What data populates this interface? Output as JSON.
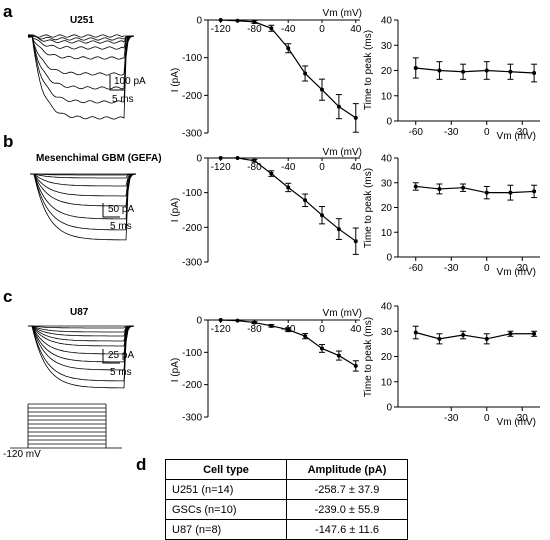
{
  "panel_letters": [
    "a",
    "b",
    "c",
    "d"
  ],
  "traces": [
    {
      "label": "U251",
      "scale_current": "100 pA",
      "scale_time": "5 ms"
    },
    {
      "label": "Mesenchimal GBM (GEFA)",
      "scale_current": "50 pA",
      "scale_time": "5 ms"
    },
    {
      "label": "U87",
      "scale_current": "25 pA",
      "scale_time": "5 ms"
    }
  ],
  "protocol_label": "-120 mV",
  "chart_data": [
    {
      "type": "line",
      "panel": "a",
      "title": "",
      "xlabel": "Vm (mV)",
      "ylabel": "I (pA)",
      "x": [
        -120,
        -100,
        -80,
        -60,
        -40,
        -20,
        0,
        20,
        40
      ],
      "y": [
        0,
        -2,
        -5,
        -22,
        -75,
        -142,
        -185,
        -230,
        -260
      ],
      "err": [
        0,
        0,
        4,
        8,
        12,
        20,
        28,
        32,
        38
      ],
      "xticks": [
        "-120",
        "-80",
        "-40",
        "0",
        "40"
      ],
      "yticks": [
        "0",
        "-100",
        "-200",
        "-300"
      ],
      "ylim": [
        -300,
        0
      ]
    },
    {
      "type": "line",
      "panel": "a",
      "title": "",
      "xlabel": "Vm (mV)",
      "ylabel": "Time to peak (ms)",
      "x": [
        -60,
        -40,
        -20,
        0,
        20,
        40
      ],
      "y": [
        21,
        20,
        19.5,
        20,
        19.5,
        19
      ],
      "err": [
        4,
        3.5,
        3,
        3.5,
        3,
        3.5
      ],
      "xticks": [
        "-60",
        "-30",
        "0",
        "30"
      ],
      "yticks": [
        "0",
        "10",
        "20",
        "30",
        "40"
      ],
      "ylim": [
        0,
        40
      ]
    },
    {
      "type": "line",
      "panel": "b",
      "title": "",
      "xlabel": "Vm (mV)",
      "ylabel": "I (pA)",
      "x": [
        -120,
        -100,
        -80,
        -60,
        -40,
        -20,
        0,
        20,
        40
      ],
      "y": [
        0,
        0,
        -8,
        -45,
        -85,
        -122,
        -165,
        -205,
        -240
      ],
      "err": [
        0,
        0,
        4,
        8,
        12,
        18,
        25,
        30,
        38
      ],
      "xticks": [
        "-120",
        "-80",
        "-40",
        "0",
        "40"
      ],
      "yticks": [
        "0",
        "-100",
        "-200",
        "-300"
      ],
      "ylim": [
        -300,
        0
      ]
    },
    {
      "type": "line",
      "panel": "b",
      "title": "",
      "xlabel": "Vm (mV)",
      "ylabel": "Time to peak (ms)",
      "x": [
        -60,
        -40,
        -20,
        0,
        20,
        40
      ],
      "y": [
        28.5,
        27.5,
        28,
        26,
        26,
        26.5
      ],
      "err": [
        1.5,
        2,
        1.5,
        2.5,
        3,
        2.5
      ],
      "xticks": [
        "-60",
        "-30",
        "0",
        "30"
      ],
      "yticks": [
        "0",
        "10",
        "20",
        "30",
        "40"
      ],
      "ylim": [
        0,
        40
      ]
    },
    {
      "type": "line",
      "panel": "c",
      "title": "",
      "xlabel": "Vm (mV)",
      "ylabel": "I (pA)",
      "x": [
        -120,
        -100,
        -80,
        -60,
        -40,
        -20,
        0,
        20,
        40
      ],
      "y": [
        0,
        -2,
        -8,
        -18,
        -30,
        -50,
        -88,
        -110,
        -142
      ],
      "err": [
        0,
        0,
        3,
        4,
        6,
        8,
        12,
        14,
        16
      ],
      "xticks": [
        "-120",
        "-80",
        "-40",
        "0",
        "40"
      ],
      "yticks": [
        "0",
        "-100",
        "-200",
        "-300"
      ],
      "ylim": [
        -300,
        0
      ]
    },
    {
      "type": "line",
      "panel": "c",
      "title": "",
      "xlabel": "Vm (mV)",
      "ylabel": "Time to peak (ms)",
      "x": [
        -60,
        -40,
        -20,
        0,
        20,
        40
      ],
      "y": [
        29.5,
        27,
        28.5,
        27,
        29,
        29
      ],
      "err": [
        2.5,
        2,
        1.5,
        2,
        1,
        1
      ],
      "xticks": [
        "-30",
        "0",
        "30"
      ],
      "yticks": [
        "0",
        "10",
        "20",
        "30",
        "40"
      ],
      "ylim": [
        0,
        40
      ]
    },
    {
      "type": "table",
      "panel": "d",
      "columns": [
        "Cell type",
        "Amplitude (pA)"
      ],
      "rows": [
        [
          "U251 (n=14)",
          "-258.7 ± 37.9"
        ],
        [
          "GSCs (n=10)",
          "-239.0 ± 55.9"
        ],
        [
          "U87 (n=8)",
          "-147.6 ± 11.6"
        ]
      ]
    }
  ],
  "table": {
    "headers": [
      "Cell type",
      "Amplitude (pA)"
    ],
    "rows": [
      {
        "cell_type": "U251 (n=14)",
        "amplitude": "-258.7 ± 37.9"
      },
      {
        "cell_type": "GSCs (n=10)",
        "amplitude": "-239.0 ± 55.9"
      },
      {
        "cell_type": "U87 (n=8)",
        "amplitude": "-147.6 ± 11.6"
      }
    ]
  }
}
